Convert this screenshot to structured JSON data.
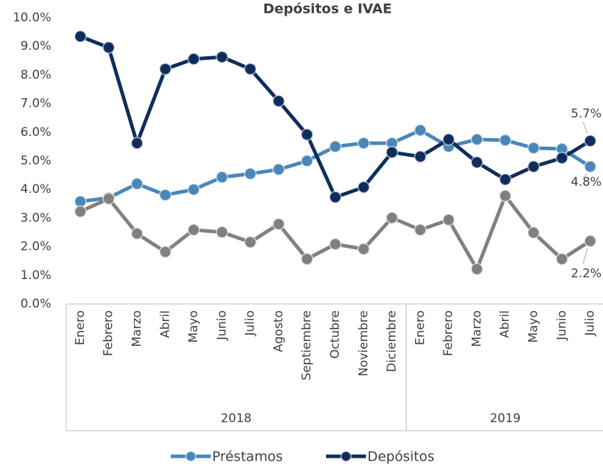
{
  "chart_data": {
    "type": "line",
    "title": "Depósitos e IVAE",
    "categories": [
      "Enero",
      "Febrero",
      "Marzo",
      "Abril",
      "Mayo",
      "Junio",
      "Julio",
      "Agosto",
      "Septiembre",
      "Octubre",
      "Noviembre",
      "Diciembre",
      "Enero",
      "Febrero",
      "Marzo",
      "Abril",
      "Mayo",
      "Junio",
      "Julio"
    ],
    "groups": [
      {
        "label": "2018",
        "span": 12
      },
      {
        "label": "2019",
        "span": 7
      }
    ],
    "series": [
      {
        "name": "Préstamos",
        "color": "#4a86b8",
        "values": [
          3.58,
          3.71,
          4.2,
          3.81,
          4.0,
          4.43,
          4.55,
          4.7,
          5.0,
          5.5,
          5.62,
          5.62,
          6.07,
          5.5,
          5.75,
          5.72,
          5.45,
          5.42,
          4.8
        ],
        "value_labels": [
          null,
          null,
          null,
          null,
          null,
          null,
          null,
          null,
          null,
          null,
          null,
          null,
          null,
          null,
          null,
          null,
          null,
          null,
          "4.8%"
        ]
      },
      {
        "name": "Depósitos",
        "color": "#0f2d5c",
        "values": [
          9.35,
          8.96,
          5.62,
          8.21,
          8.56,
          8.63,
          8.21,
          7.09,
          5.92,
          3.73,
          4.08,
          5.3,
          5.15,
          5.75,
          4.95,
          4.35,
          4.8,
          5.1,
          5.7
        ],
        "value_labels": [
          null,
          null,
          null,
          null,
          null,
          null,
          null,
          null,
          null,
          null,
          null,
          null,
          null,
          null,
          null,
          null,
          null,
          null,
          "5.7%"
        ]
      },
      {
        "color": "#808080",
        "values": [
          3.23,
          3.68,
          2.46,
          1.82,
          2.59,
          2.51,
          2.16,
          2.79,
          1.57,
          2.09,
          1.92,
          3.01,
          2.59,
          2.94,
          1.22,
          3.78,
          2.49,
          1.57,
          2.2
        ],
        "value_labels": [
          null,
          null,
          null,
          null,
          null,
          null,
          null,
          null,
          null,
          null,
          null,
          null,
          null,
          null,
          null,
          null,
          null,
          null,
          "2.2%"
        ]
      }
    ],
    "ylim": [
      0,
      10
    ],
    "yticks": [
      {
        "value": 0,
        "label": "0.0%"
      },
      {
        "value": 1,
        "label": "1.0%"
      },
      {
        "value": 2,
        "label": "2.0%"
      },
      {
        "value": 3,
        "label": "3.0%"
      },
      {
        "value": 4,
        "label": "4.0%"
      },
      {
        "value": 5,
        "label": "5.0%"
      },
      {
        "value": 6,
        "label": "6.0%"
      },
      {
        "value": 7,
        "label": "7.0%"
      },
      {
        "value": 8,
        "label": "8.0%"
      },
      {
        "value": 9,
        "label": "9.0%"
      },
      {
        "value": 10,
        "label": "10.0%"
      }
    ],
    "grid": false,
    "legend": "bottom"
  }
}
